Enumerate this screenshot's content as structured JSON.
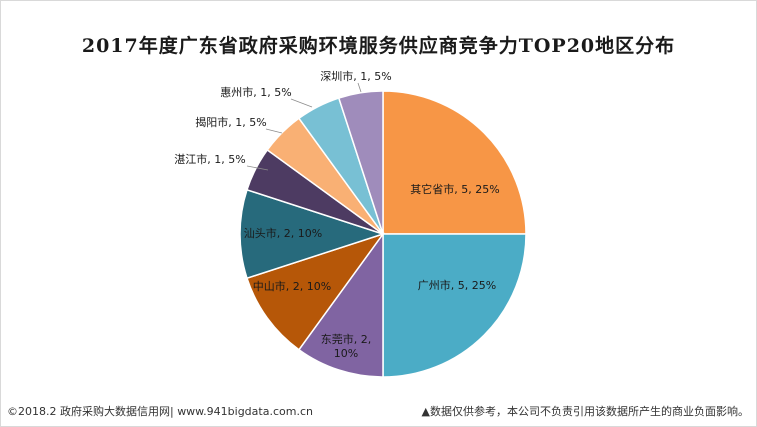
{
  "chart_data": {
    "type": "pie",
    "title": "2017年度广东省政府采购环境服务供应商竞争力TOP20地区分布",
    "slices": [
      {
        "name": "其它省市",
        "value": 5,
        "percent": "25%",
        "color": "#F79646"
      },
      {
        "name": "广州市",
        "value": 5,
        "percent": "25%",
        "color": "#4BACC6"
      },
      {
        "name": "东莞市",
        "value": 2,
        "percent": "10%",
        "color": "#8064A2"
      },
      {
        "name": "中山市",
        "value": 2,
        "percent": "10%",
        "color": "#B65708"
      },
      {
        "name": "汕头市",
        "value": 2,
        "percent": "10%",
        "color": "#276A7C"
      },
      {
        "name": "湛江市",
        "value": 1,
        "percent": "5%",
        "color": "#4D3B62"
      },
      {
        "name": "揭阳市",
        "value": 1,
        "percent": "5%",
        "color": "#F9B074"
      },
      {
        "name": "惠州市",
        "value": 1,
        "percent": "5%",
        "color": "#78C0D4"
      },
      {
        "name": "深圳市",
        "value": 1,
        "percent": "5%",
        "color": "#9F8CBB"
      }
    ]
  },
  "footer": {
    "source": "©2018.2 政府采购大数据信用网| www.941bigdata.com.cn",
    "disclaimer": "▲数据仅供参考，本公司不负责引用该数据所产生的商业负面影响。"
  }
}
